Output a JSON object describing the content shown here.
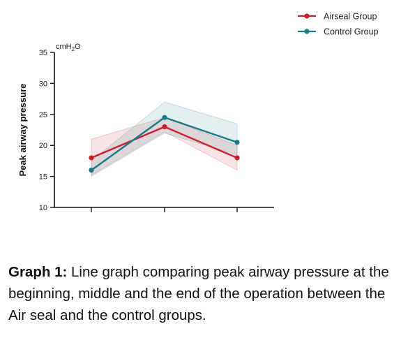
{
  "chart_data": {
    "type": "line",
    "title": "",
    "xlabel": "",
    "ylabel": "Peak airway pressure",
    "unit": "cmH₂O",
    "ylim": [
      10,
      35
    ],
    "yticks": [
      10,
      15,
      20,
      25,
      30,
      35
    ],
    "x": [
      1,
      2,
      3
    ],
    "legend_position": "top-right",
    "grid": false,
    "series": [
      {
        "name": "Airseal Group",
        "color": "#cc1f2b",
        "values": [
          18,
          23,
          18
        ],
        "band_low": [
          15.2,
          22.2,
          16.0
        ],
        "band_high": [
          21.0,
          24.5,
          20.0
        ]
      },
      {
        "name": "Control Group",
        "color": "#1a7a8c",
        "values": [
          16,
          24.5,
          20.5
        ],
        "band_low": [
          15.0,
          22.0,
          18.5
        ],
        "band_high": [
          17.5,
          27.0,
          23.5
        ]
      }
    ]
  },
  "caption": {
    "label": "Graph 1:",
    "text": " Line graph comparing peak airway pressure at the beginning, middle and the end of the operation between the Air seal and the control groups."
  }
}
